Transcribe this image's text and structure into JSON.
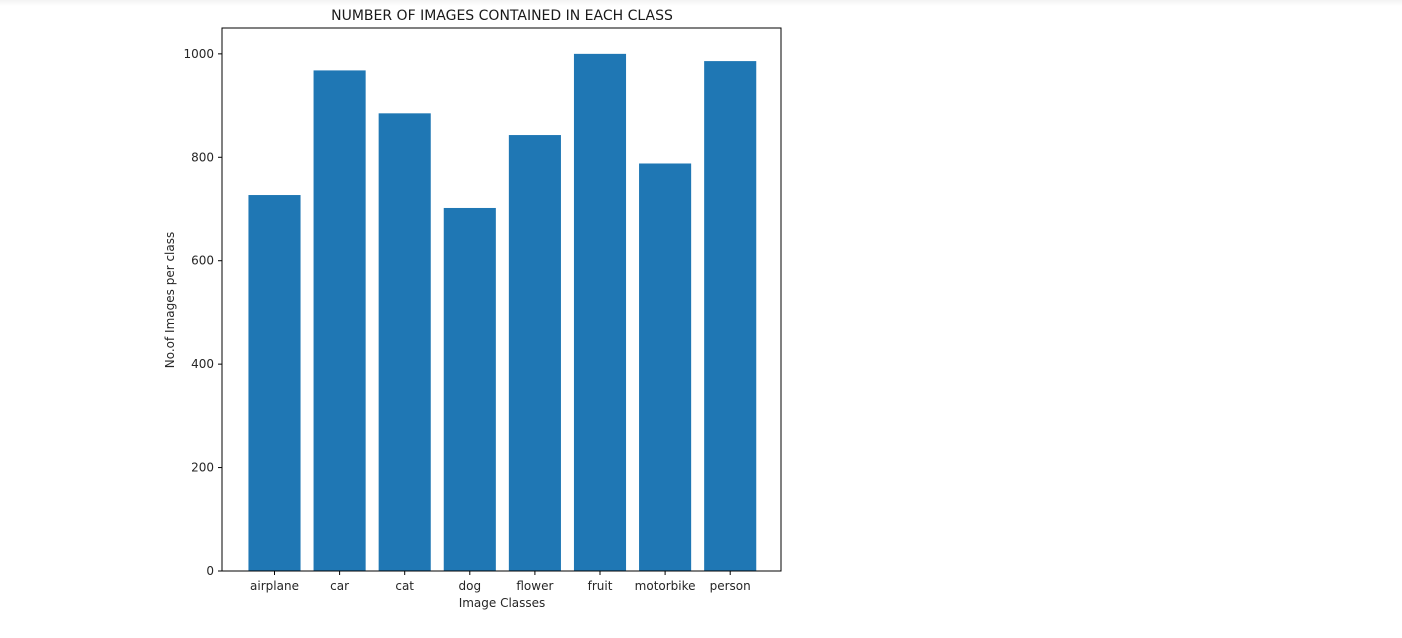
{
  "chart_data": {
    "type": "bar",
    "title": "NUMBER OF IMAGES CONTAINED IN EACH CLASS",
    "xlabel": "Image Classes",
    "ylabel": "No.of Images per class",
    "categories": [
      "airplane",
      "car",
      "cat",
      "dog",
      "flower",
      "fruit",
      "motorbike",
      "person"
    ],
    "values": [
      727,
      968,
      885,
      702,
      843,
      1000,
      788,
      986
    ],
    "ylim": [
      0,
      1050
    ],
    "yticks": [
      "0",
      "200",
      "400",
      "600",
      "800",
      "1000"
    ],
    "bar_color": "#1f77b4",
    "grid": false,
    "legend": "none"
  }
}
